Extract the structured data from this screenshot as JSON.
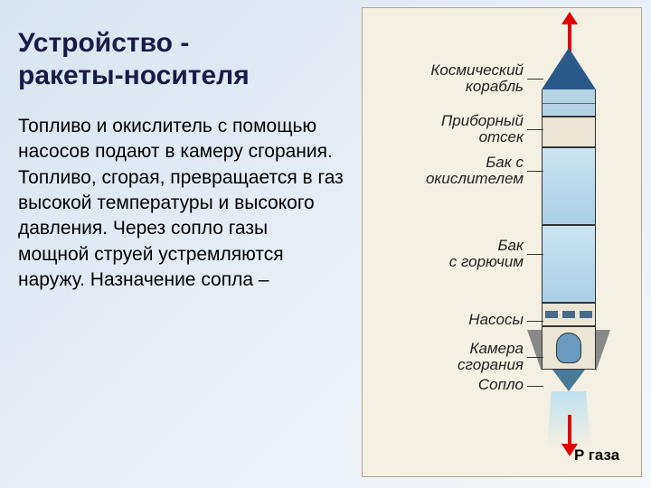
{
  "title_line1": "Устройство -",
  "title_line2": "ракеты-носителя",
  "body_text": "Топливо и окислитель с помощью насосов подают в камеру сгорания. Топливо, сгорая, превращается в газ высокой температуры и высокого давления. Через сопло газы мощной струей устремляются наружу. Назначение сопла –",
  "diagram": {
    "type": "labeled-cross-section",
    "labels": {
      "capsule": "Космический\nкорабль",
      "instrument": "Приборный\nотсек",
      "oxidizer": "Бак с\nокислителем",
      "fuel": "Бак\nс горючим",
      "pumps": "Насосы",
      "chamber": "Камера\nсгорания",
      "nozzle": "Сопло"
    },
    "exhaust_label": "P газа",
    "colors": {
      "panel_bg": "#f4f0e4",
      "nose": "#2a5a8a",
      "tank_fill": "#b4d4e4",
      "body_fill": "#eae5d5",
      "arrow": "#e00000",
      "outline": "#333333"
    },
    "arrows": [
      {
        "dir": "up",
        "color": "#e00000",
        "meaning": "thrust-up"
      },
      {
        "dir": "down",
        "color": "#e00000",
        "meaning": "gas-pressure-down"
      }
    ]
  }
}
